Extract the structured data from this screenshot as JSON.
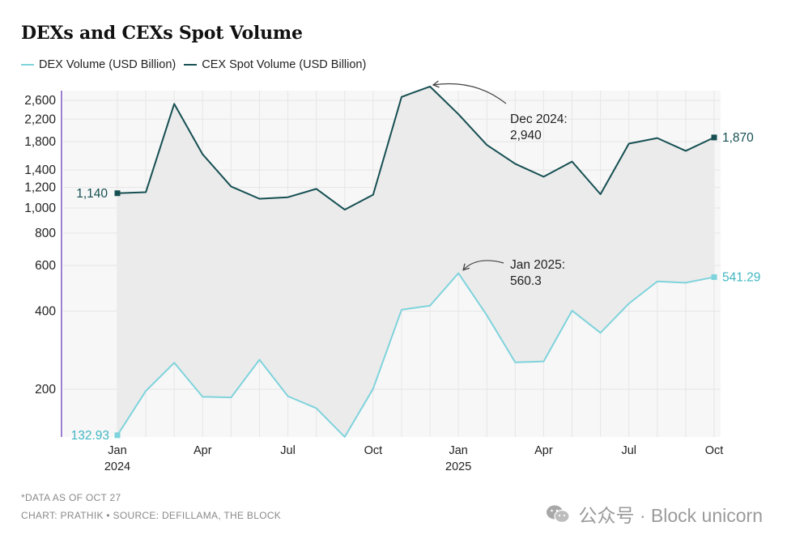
{
  "title": "DEXs and CEXs Spot Volume",
  "legend": {
    "dex": "DEX Volume (USD Billion)",
    "cex": "CEX Spot Volume (USD Billion)"
  },
  "colors": {
    "dex": "#7fd3dc",
    "cex": "#164f52",
    "fill": "#ebebeb",
    "grid": "#e6e6e6",
    "axis": "#9b7fd1"
  },
  "chart_data": {
    "type": "line",
    "y_scale": "log",
    "ylim": [
      125,
      2950
    ],
    "y_ticks": [
      {
        "value": 200,
        "label": "200"
      },
      {
        "value": 400,
        "label": "400"
      },
      {
        "value": 600,
        "label": "600"
      },
      {
        "value": 800,
        "label": "800"
      },
      {
        "value": 1000,
        "label": "1,000"
      },
      {
        "value": 1200,
        "label": "1,200"
      },
      {
        "value": 1400,
        "label": "1,400"
      },
      {
        "value": 1800,
        "label": "1,800"
      },
      {
        "value": 2200,
        "label": "2,200"
      },
      {
        "value": 2600,
        "label": "2,600"
      }
    ],
    "x_ticks": [
      {
        "index": 0,
        "label": "Jan",
        "year": "2024"
      },
      {
        "index": 3,
        "label": "Apr"
      },
      {
        "index": 6,
        "label": "Jul"
      },
      {
        "index": 9,
        "label": "Oct"
      },
      {
        "index": 12,
        "label": "Jan",
        "year": "2025"
      },
      {
        "index": 15,
        "label": "Apr"
      },
      {
        "index": 18,
        "label": "Jul"
      },
      {
        "index": 21,
        "label": "Oct"
      }
    ],
    "grid": true,
    "x": [
      "Jan 2024",
      "Feb 2024",
      "Mar 2024",
      "Apr 2024",
      "May 2024",
      "Jun 2024",
      "Jul 2024",
      "Aug 2024",
      "Sep 2024",
      "Oct 2024",
      "Nov 2024",
      "Dec 2024",
      "Jan 2025",
      "Feb 2025",
      "Mar 2025",
      "Apr 2025",
      "May 2025",
      "Jun 2025",
      "Jul 2025",
      "Aug 2025",
      "Sep 2025",
      "Oct 2025"
    ],
    "series": [
      {
        "name": "CEX Spot Volume (USD Billion)",
        "key": "cex",
        "values": [
          1140,
          1150,
          2520,
          1610,
          1210,
          1085,
          1100,
          1185,
          985,
          1125,
          2680,
          2940,
          2300,
          1750,
          1480,
          1320,
          1510,
          1130,
          1770,
          1860,
          1660,
          1870
        ]
      },
      {
        "name": "DEX Volume (USD Billion)",
        "key": "dex",
        "values": [
          132.93,
          197,
          253,
          187,
          186,
          260,
          188,
          169,
          131,
          201,
          405,
          420,
          560.3,
          386,
          254,
          256,
          402,
          330,
          428,
          521,
          515,
          541.29
        ]
      }
    ],
    "end_labels": {
      "cex_start": "1,140",
      "cex_end": "1,870",
      "dex_start": "132.93",
      "dex_end": "541.29"
    },
    "annotations": [
      {
        "series": "cex",
        "index": 11,
        "line1": "Dec 2024:",
        "line2": "2,940"
      },
      {
        "series": "dex",
        "index": 12,
        "line1": "Jan 2025:",
        "line2": "560.3"
      }
    ]
  },
  "footnotes": {
    "note": "*DATA AS OF OCT 27",
    "credit": "CHART: PRATHIK • SOURCE: DEFILLAMA, THE BLOCK"
  },
  "watermark": "公众号 · Block unicorn"
}
